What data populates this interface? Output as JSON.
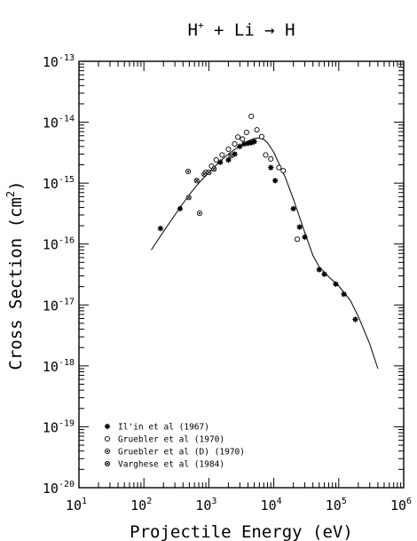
{
  "chart_data": {
    "type": "scatter",
    "title": {
      "base1": "H",
      "sup1": "+",
      "rest": " + Li → H"
    },
    "xlabel": "Projectile Energy (eV)",
    "ylabel": {
      "base": "Cross Section (cm",
      "sup": "2",
      "end": ")"
    },
    "x_scale": "log",
    "y_scale": "log",
    "xlim": [
      10,
      1000000
    ],
    "ylim": [
      1e-20,
      1e-13
    ],
    "x_ticks": [
      {
        "value": 10,
        "base": "10",
        "exp": "1"
      },
      {
        "value": 100,
        "base": "10",
        "exp": "2"
      },
      {
        "value": 1000,
        "base": "10",
        "exp": "3"
      },
      {
        "value": 10000,
        "base": "10",
        "exp": "4"
      },
      {
        "value": 100000,
        "base": "10",
        "exp": "5"
      },
      {
        "value": 1000000,
        "base": "10",
        "exp": "6"
      }
    ],
    "y_ticks": [
      {
        "value": 1e-20,
        "base": "10",
        "exp": "-20"
      },
      {
        "value": 1e-19,
        "base": "10",
        "exp": "-19"
      },
      {
        "value": 1e-18,
        "base": "10",
        "exp": "-18"
      },
      {
        "value": 1e-17,
        "base": "10",
        "exp": "-17"
      },
      {
        "value": 1e-16,
        "base": "10",
        "exp": "-16"
      },
      {
        "value": 1e-15,
        "base": "10",
        "exp": "-15"
      },
      {
        "value": 1e-14,
        "base": "10",
        "exp": "-14"
      },
      {
        "value": 1e-13,
        "base": "10",
        "exp": "-13"
      }
    ],
    "legend_placement": "bottom-left",
    "fit_curve": {
      "x": [
        130,
        200,
        300,
        500,
        700,
        1000,
        1500,
        2000,
        3000,
        4000,
        5000,
        6000,
        7000,
        8000,
        10000,
        15000,
        20000,
        30000,
        40000,
        50000,
        70000,
        100000,
        150000,
        200000,
        300000,
        400000
      ],
      "y": [
        8e-17,
        1.6e-16,
        3e-16,
        6.5e-16,
        1e-15,
        1.5e-15,
        2.3e-15,
        3e-15,
        4.1e-15,
        4.9e-15,
        5.4e-15,
        5.5e-15,
        5.2e-15,
        4.6e-15,
        3.2e-15,
        1.25e-15,
        5.5e-16,
        1.55e-16,
        6.5e-17,
        4.2e-17,
        2.9e-17,
        2.05e-17,
        1.2e-17,
        6.5e-18,
        2.3e-18,
        9e-19
      ]
    },
    "series": [
      {
        "name": "Il'in et al (1967)",
        "marker": "asterisk",
        "x": [
          180,
          360,
          1500,
          2000,
          2500,
          3000,
          3500,
          4000,
          4500,
          5000,
          9000,
          10500,
          20000,
          25000,
          30000,
          50000,
          60000,
          90000,
          120000,
          180000
        ],
        "y": [
          1.8e-16,
          3.8e-16,
          2.2e-15,
          2.4e-15,
          3e-15,
          4e-15,
          4.4e-15,
          4.5e-15,
          4.6e-15,
          4.8e-15,
          1.8e-15,
          1.1e-15,
          3.8e-16,
          1.9e-16,
          1.3e-16,
          3.8e-17,
          3.2e-17,
          2.2e-17,
          1.5e-17,
          5.8e-18
        ]
      },
      {
        "name": "Gruebler et al (1970)",
        "marker": "circle",
        "x": [
          900,
          1100,
          1300,
          1600,
          2000,
          2500,
          2800,
          3300,
          3800,
          4500,
          5500,
          6500,
          7500,
          9000,
          12000,
          14000,
          23000
        ],
        "y": [
          1.5e-15,
          1.9e-15,
          2.4e-15,
          2.9e-15,
          3.6e-15,
          4.4e-15,
          5.7e-15,
          5.3e-15,
          6.8e-15,
          1.25e-14,
          7.5e-15,
          5.8e-15,
          2.9e-15,
          2.5e-15,
          1.8e-15,
          1.6e-15,
          1.2e-16
        ]
      },
      {
        "name": "Gruebler et al (D) (1970)",
        "marker": "circle-dot",
        "x": [
          480,
          720
        ],
        "y": [
          1.55e-15,
          3.2e-16
        ]
      },
      {
        "name": "Varghese et al (1984)",
        "marker": "circle-cross",
        "x": [
          490,
          650,
          850,
          1000,
          1200,
          2200
        ],
        "y": [
          5.8e-16,
          1.1e-15,
          1.4e-15,
          1.5e-15,
          1.7e-15,
          2.8e-15
        ]
      }
    ]
  }
}
